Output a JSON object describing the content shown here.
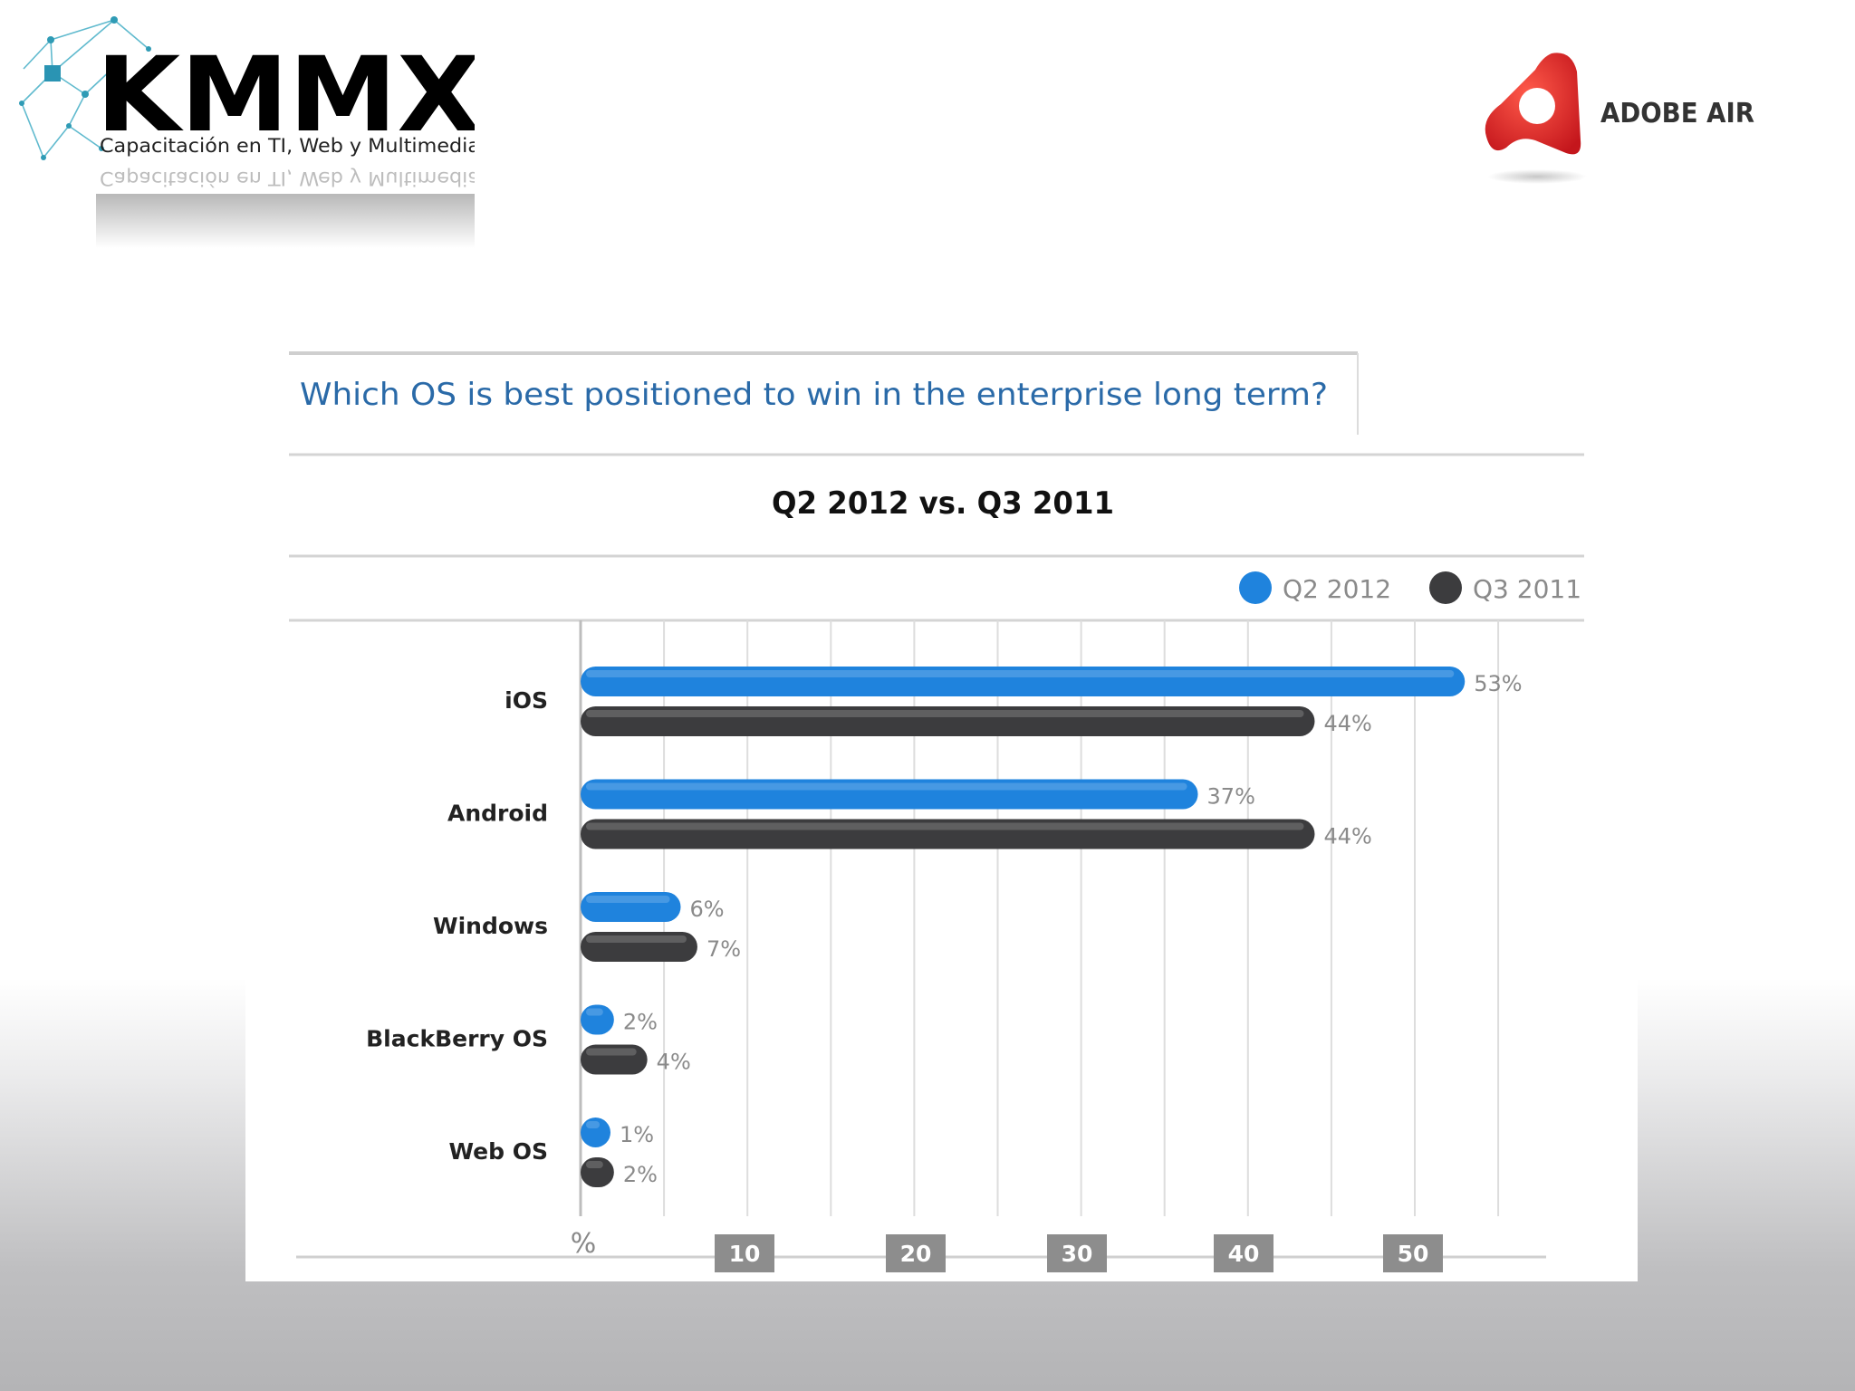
{
  "brand": {
    "kmmx_logo": "KMMX",
    "kmmx_tagline": "Capacitación en TI, Web y Multimedia",
    "adobe_logo": "ADOBE AIR"
  },
  "chart_data": {
    "type": "bar",
    "orientation": "horizontal",
    "title": "Which OS is best positioned to win in the enterprise long term?",
    "subtitle": "Q2 2012 vs. Q3 2011",
    "unit_label": "%",
    "categories": [
      "iOS",
      "Android",
      "Windows",
      "BlackBerry OS",
      "Web OS"
    ],
    "series": [
      {
        "name": "Q2 2012",
        "color": "#1f83dd",
        "values": [
          53,
          37,
          6,
          2,
          1
        ],
        "labels": [
          "53%",
          "37%",
          "6%",
          "2%",
          "1%"
        ]
      },
      {
        "name": "Q3 2011",
        "color": "#3c3c3e",
        "values": [
          44,
          44,
          7,
          4,
          2
        ],
        "labels": [
          "44%",
          "44%",
          "7%",
          "4%",
          "2%"
        ]
      }
    ],
    "x_ticks": [
      "10",
      "20",
      "30",
      "40",
      "50"
    ],
    "x_tick_values": [
      10,
      20,
      30,
      40,
      50
    ],
    "xlim": [
      0,
      55
    ],
    "legend_position": "top-right",
    "grid": true
  }
}
